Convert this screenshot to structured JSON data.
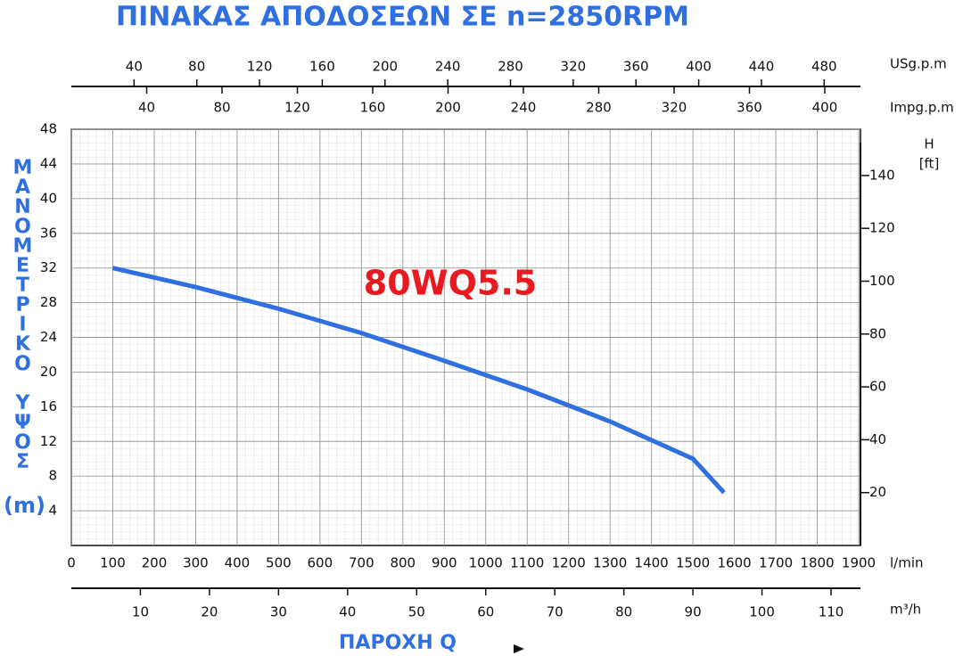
{
  "chart_data": {
    "type": "line",
    "title": "ΠΙΝΑΚΑΣ ΑΠΟΔΟΣΕΩΝ ΣΕ n=2850RPM",
    "y_label": "ΜΑΝΟΜΕΤΡΙΚΟ ΥΨΟΣ",
    "y_label_unit": "(m)",
    "x_label": "ΠΑΡΟΧΗ Q",
    "x_unit": "l/min",
    "x": [
      100,
      300,
      500,
      700,
      900,
      1100,
      1300,
      1500,
      1575
    ],
    "series": [
      {
        "name": "80WQ5.5",
        "color": "#2f6fe0",
        "values": [
          32,
          29.8,
          27.3,
          24.5,
          21.3,
          18.0,
          14.3,
          10.0,
          6.1
        ]
      }
    ],
    "xlim": [
      0,
      1900
    ],
    "xticks": [
      0,
      100,
      200,
      300,
      400,
      500,
      600,
      700,
      800,
      900,
      1000,
      1100,
      1200,
      1300,
      1400,
      1500,
      1600,
      1700,
      1800,
      1900
    ],
    "ylim": [
      0,
      48
    ],
    "yticks": [
      4,
      8,
      12,
      16,
      20,
      24,
      28,
      32,
      36,
      40,
      44,
      48
    ],
    "y2_label": "H",
    "y2_unit": "[ft]",
    "y2lim": [
      0,
      157.5
    ],
    "y2ticks": [
      20,
      40,
      60,
      80,
      100,
      120,
      140
    ],
    "grid": true,
    "extra_x_axes": [
      {
        "label": "USg.p.m",
        "lim": [
          0,
          502
        ],
        "ticks": [
          40,
          80,
          120,
          160,
          200,
          240,
          280,
          320,
          360,
          400,
          440,
          480
        ]
      },
      {
        "label": "Impg.p.m",
        "lim": [
          0,
          418
        ],
        "ticks": [
          40,
          80,
          120,
          160,
          200,
          240,
          280,
          320,
          360,
          400
        ]
      },
      {
        "label": "m³/h",
        "lim": [
          0,
          114
        ],
        "ticks": [
          10,
          20,
          30,
          40,
          50,
          60,
          70,
          80,
          90,
          100,
          110
        ]
      }
    ]
  }
}
